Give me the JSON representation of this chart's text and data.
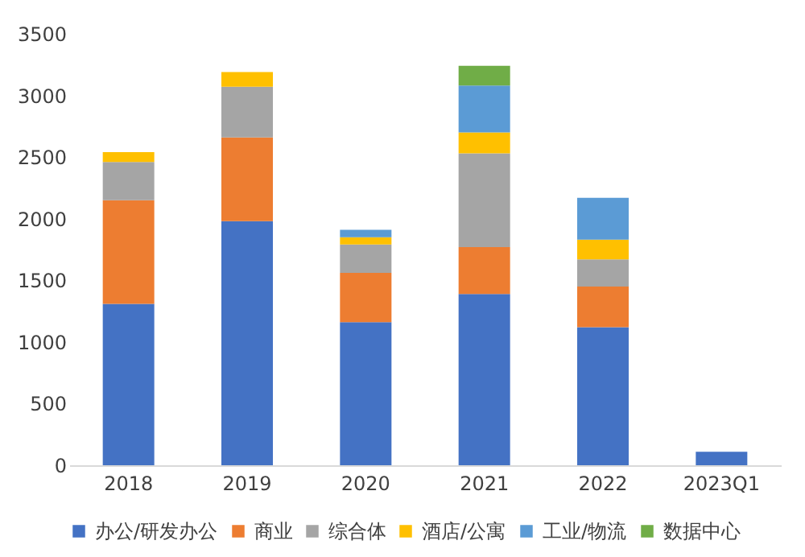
{
  "chart_data": {
    "type": "bar",
    "stacked": true,
    "categories": [
      "2018",
      "2019",
      "2020",
      "2021",
      "2022",
      "2023Q1"
    ],
    "series": [
      {
        "name": "办公/研发办公",
        "color": "#4472c4",
        "values": [
          1310,
          1980,
          1160,
          1390,
          1120,
          110
        ]
      },
      {
        "name": "商业",
        "color": "#ed7d31",
        "values": [
          840,
          680,
          400,
          380,
          330,
          0
        ]
      },
      {
        "name": "综合体",
        "color": "#a5a5a5",
        "values": [
          310,
          410,
          230,
          760,
          220,
          0
        ]
      },
      {
        "name": "酒店/公寓",
        "color": "#ffc000",
        "values": [
          80,
          120,
          60,
          170,
          160,
          0
        ]
      },
      {
        "name": "工业/物流",
        "color": "#5b9bd5",
        "values": [
          0,
          0,
          60,
          380,
          340,
          0
        ]
      },
      {
        "name": "数据中心",
        "color": "#70ad47",
        "values": [
          0,
          0,
          0,
          160,
          0,
          0
        ]
      }
    ],
    "ylim": [
      0,
      3500
    ],
    "yticks": [
      0,
      500,
      1000,
      1500,
      2000,
      2500,
      3000,
      3500
    ],
    "grid": false,
    "legend": "bottom"
  }
}
